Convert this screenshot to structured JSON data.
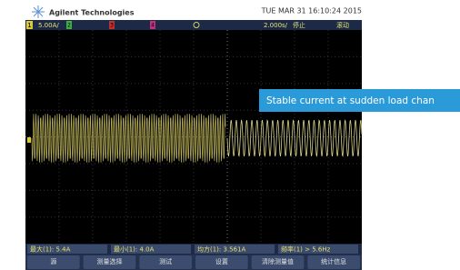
{
  "header": {
    "brand": "Agilent Technologies",
    "datetime": "TUE MAR 31 16:10:24 2015"
  },
  "status": {
    "channel": "1",
    "scale": "5.00A/",
    "ch2": "2",
    "ch3": "3",
    "ch4": "4",
    "timebase": "2.000s/",
    "run_state": "停止",
    "mode": "滚动"
  },
  "annotation": "Stable current at sudden load chan",
  "measurements": [
    "最大(1): 5.4A",
    "最小(1): 4.0A",
    "均方(1): 3.561A",
    "频率(1) > 5.6Hz"
  ],
  "softkeys": [
    "源",
    "测量选择",
    "测试",
    "设置",
    "清除测量值",
    "统计信息"
  ]
}
